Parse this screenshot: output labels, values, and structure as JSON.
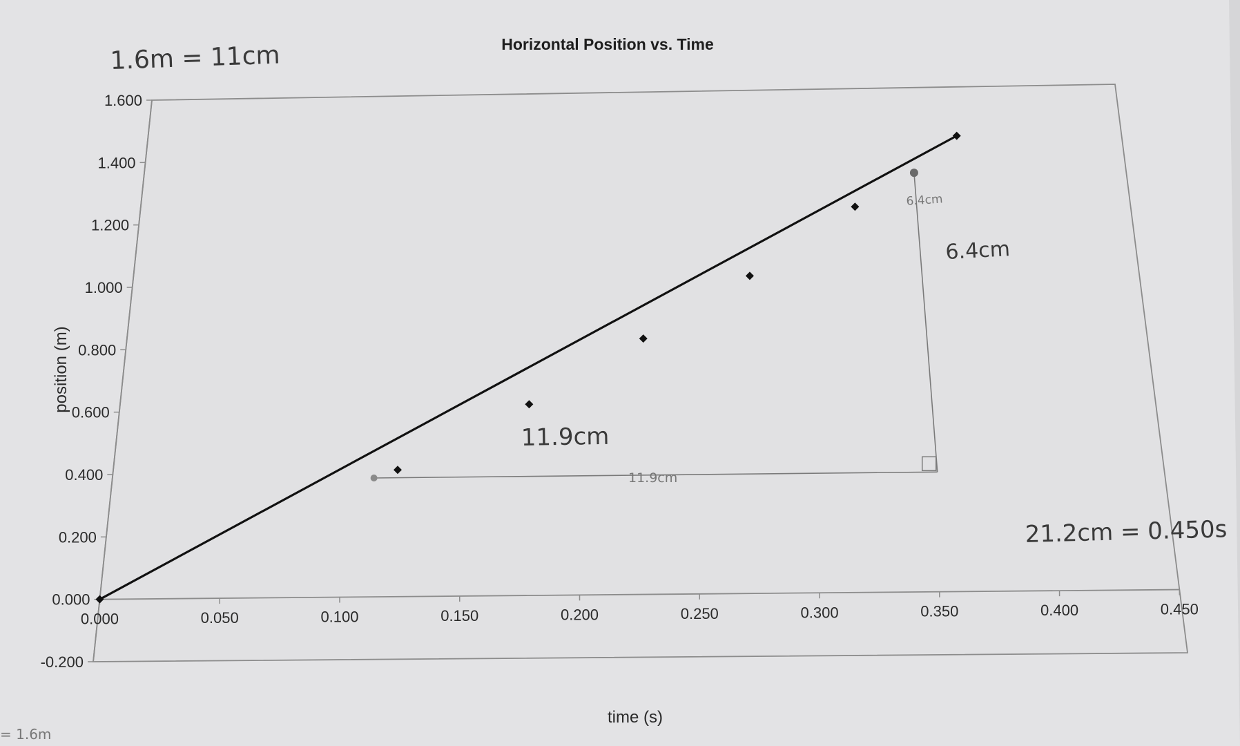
{
  "chart_data": {
    "type": "scatter",
    "title": "Horizontal Position vs. Time",
    "xlabel": "time (s)",
    "ylabel": "position (m)",
    "xlim": [
      0.0,
      0.45
    ],
    "ylim": [
      -0.2,
      1.6
    ],
    "x_ticks": [
      "0.000",
      "0.050",
      "0.100",
      "0.150",
      "0.200",
      "0.250",
      "0.300",
      "0.350",
      "0.400",
      "0.450"
    ],
    "y_ticks": [
      "-0.200",
      "0.000",
      "0.200",
      "0.400",
      "0.600",
      "0.800",
      "1.000",
      "1.200",
      "1.400",
      "1.600"
    ],
    "grid": false,
    "series": [
      {
        "x": [
          0.0,
          0.122,
          0.178,
          0.228,
          0.276,
          0.325,
          0.374
        ],
        "y": [
          0.0,
          0.405,
          0.61,
          0.815,
          1.01,
          1.225,
          1.445
        ]
      }
    ],
    "trendline": {
      "x": [
        0.0,
        0.374
      ],
      "y": [
        0.0,
        1.445
      ]
    },
    "annotations": {
      "scale_note": "1.6m = 11cm",
      "rise_label": "6.4cm",
      "rise_label_small": "6.4cm",
      "run_label": "11.9cm",
      "run_label_small": "11.9cm",
      "time_scale_note": "21.2cm = 0.450s",
      "corner_note": "= 1.6m"
    },
    "slope_triangle": {
      "x": [
        0.112,
        0.353
      ],
      "y": [
        0.38,
        1.33
      ]
    }
  }
}
